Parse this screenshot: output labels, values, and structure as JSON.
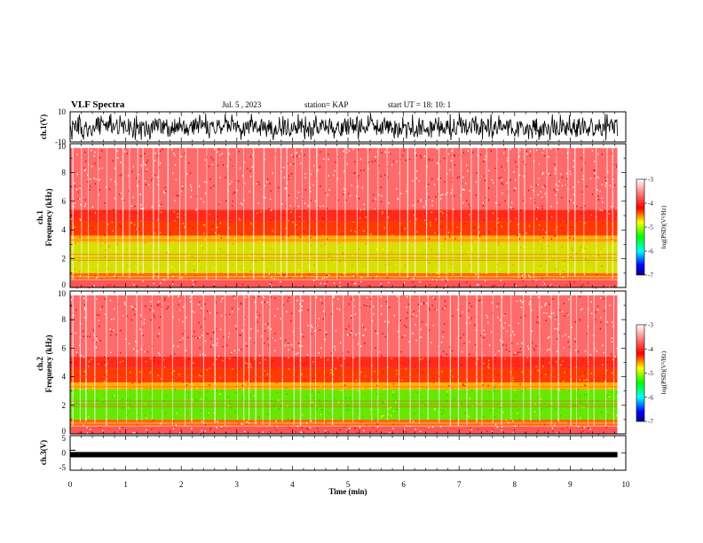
{
  "header": {
    "title": "VLF Spectra",
    "date": "Jul. 5 , 2023",
    "station": "station= KAP",
    "start_ut": "start UT = 18: 10: 1"
  },
  "chart_data": [
    {
      "type": "line",
      "name": "waveform-ch1",
      "ylabel": "ch.1(V)",
      "ylim": [
        -10,
        10
      ],
      "yticks": [
        "10",
        "-10"
      ],
      "xlim": [
        0,
        10
      ],
      "trace_span_min": [
        0,
        9.85
      ],
      "color": "#000000"
    },
    {
      "type": "heatmap",
      "name": "spectrogram-ch1",
      "ylabel_lines": [
        "ch.1",
        "Frequency (kHz)"
      ],
      "ylim": [
        0,
        10
      ],
      "yticks": [
        "0",
        "2",
        "4",
        "6",
        "8",
        "10"
      ],
      "xlim": [
        0,
        10
      ],
      "data_span_min": [
        0,
        9.85
      ],
      "colorbar": {
        "label": "log(PSD)(V²/Hz)",
        "range": [
          -7,
          -3
        ],
        "ticks": [
          "-3",
          "-4",
          "-5",
          "-6",
          "-7"
        ],
        "colors": [
          "#ffffff",
          "#ff0000",
          "#ffff00",
          "#00ff00",
          "#00ffff",
          "#0000ff",
          "#000080"
        ]
      }
    },
    {
      "type": "heatmap",
      "name": "spectrogram-ch2",
      "ylabel_lines": [
        "ch.2",
        "Frequency (kHz)"
      ],
      "ylim": [
        0,
        10
      ],
      "yticks": [
        "0",
        "2",
        "4",
        "6",
        "8",
        "10"
      ],
      "xlim": [
        0,
        10
      ],
      "data_span_min": [
        0,
        9.85
      ],
      "colorbar": {
        "label": "log(PSD)(V²/Hz)",
        "range": [
          -7,
          -3
        ],
        "ticks": [
          "-3",
          "-4",
          "-5",
          "-6",
          "-7"
        ],
        "colors": [
          "#ffffff",
          "#ff0000",
          "#ffff00",
          "#00ff00",
          "#00ffff",
          "#0000ff",
          "#000080"
        ]
      }
    },
    {
      "type": "line",
      "name": "waveform-ch3",
      "ylabel": "ch.3(V)",
      "ylim": [
        -5,
        5
      ],
      "yticks": [
        "5",
        "0",
        "-5"
      ],
      "xlim": [
        0,
        10
      ],
      "trace_level_v": -0.5,
      "trace_span_min": [
        0,
        9.85
      ],
      "color": "#000000"
    }
  ],
  "xaxis": {
    "label": "Time (min)",
    "ticks": [
      "0",
      "1",
      "2",
      "3",
      "4",
      "5",
      "6",
      "7",
      "8",
      "9",
      "10"
    ]
  }
}
